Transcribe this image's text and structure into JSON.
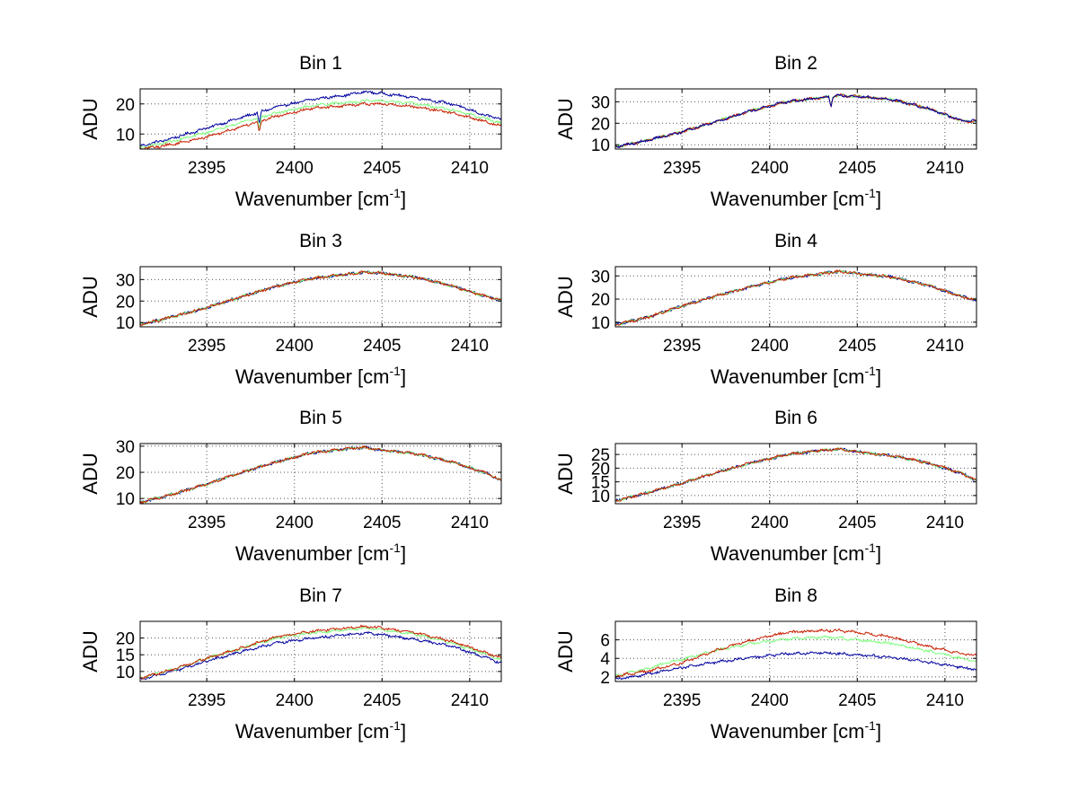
{
  "figure": {
    "x_label_prefix": "Wavenumber [cm",
    "x_label_sup": "-1",
    "x_label_suffix": "]",
    "y_label": "ADU",
    "x_ticks": [
      "2395",
      "2400",
      "2405",
      "2410"
    ],
    "colors": {
      "blue": "#0000a0",
      "green": "#7dff7d",
      "red": "#c81e00",
      "grid": "#555555",
      "axis": "#000000"
    }
  },
  "chart_data": [
    {
      "type": "line",
      "title": "Bin 1",
      "xlabel": "Wavenumber [cm-1]",
      "ylabel": "ADU",
      "xlim": [
        2391.2,
        2411.8
      ],
      "ylim": [
        5,
        25
      ],
      "yticks": [
        10,
        20
      ],
      "yticklabels": [
        "10",
        "20"
      ],
      "x": [
        2391.2,
        2393,
        2395,
        2397,
        2399,
        2401,
        2403,
        2404,
        2405,
        2407,
        2409,
        2411,
        2411.8
      ],
      "series": [
        {
          "name": "blue",
          "values": [
            6,
            8.5,
            12,
            15.5,
            19,
            21.5,
            23,
            24,
            23.5,
            22,
            20,
            16,
            15
          ]
        },
        {
          "name": "green",
          "values": [
            5.5,
            7.5,
            10.5,
            14,
            17,
            19.5,
            20.5,
            21,
            21,
            20,
            18,
            15,
            13.5
          ]
        },
        {
          "name": "red",
          "values": [
            5,
            6.5,
            9,
            12.5,
            16,
            18.5,
            19.5,
            20,
            20,
            19,
            17,
            14,
            12.5
          ]
        }
      ],
      "annotations": [
        {
          "x": 2398,
          "dip": 4
        }
      ]
    },
    {
      "type": "line",
      "title": "Bin 2",
      "xlabel": "Wavenumber [cm-1]",
      "ylabel": "ADU",
      "xlim": [
        2391.2,
        2411.8
      ],
      "ylim": [
        8,
        36
      ],
      "yticks": [
        10,
        20,
        30
      ],
      "yticklabels": [
        "10",
        "20",
        "30"
      ],
      "x": [
        2391.2,
        2393,
        2395,
        2397,
        2399,
        2401,
        2403,
        2404,
        2405,
        2407,
        2409,
        2411,
        2411.8
      ],
      "series": [
        {
          "name": "green",
          "values": [
            9,
            12,
            16,
            21,
            26,
            30,
            32,
            33,
            32.5,
            31,
            27,
            21,
            21
          ]
        },
        {
          "name": "red",
          "values": [
            9,
            12,
            16,
            21,
            26,
            30,
            32,
            33,
            32.5,
            31,
            27,
            21,
            21
          ]
        },
        {
          "name": "blue",
          "values": [
            9,
            12,
            16,
            21,
            26,
            30,
            32,
            33,
            32.5,
            31,
            27,
            21,
            21
          ]
        }
      ],
      "annotations": [
        {
          "x": 2403.5,
          "dip": 5
        }
      ]
    },
    {
      "type": "line",
      "title": "Bin 3",
      "xlabel": "Wavenumber [cm-1]",
      "ylabel": "ADU",
      "xlim": [
        2391.2,
        2411.8
      ],
      "ylim": [
        8,
        36
      ],
      "yticks": [
        10,
        20,
        30
      ],
      "yticklabels": [
        "10",
        "20",
        "30"
      ],
      "x": [
        2391.2,
        2393,
        2395,
        2397,
        2399,
        2401,
        2403,
        2404,
        2405,
        2407,
        2409,
        2411,
        2411.8
      ],
      "series": [
        {
          "name": "blue",
          "values": [
            9,
            12.5,
            17,
            22,
            27,
            30.5,
            32.5,
            33.5,
            33,
            31,
            27,
            22,
            20.5
          ]
        },
        {
          "name": "green",
          "values": [
            9,
            12.5,
            17,
            22,
            27,
            30.5,
            32.5,
            33.5,
            33,
            31,
            27,
            22,
            20.5
          ]
        },
        {
          "name": "red",
          "values": [
            9,
            12.5,
            17,
            22,
            27,
            30.5,
            32.5,
            33.5,
            33,
            31,
            27,
            22,
            20.5
          ]
        }
      ],
      "annotations": []
    },
    {
      "type": "line",
      "title": "Bin 4",
      "xlabel": "Wavenumber [cm-1]",
      "ylabel": "ADU",
      "xlim": [
        2391.2,
        2411.8
      ],
      "ylim": [
        8,
        34
      ],
      "yticks": [
        10,
        20,
        30
      ],
      "yticklabels": [
        "10",
        "20",
        "30"
      ],
      "x": [
        2391.2,
        2393,
        2395,
        2397,
        2399,
        2401,
        2403,
        2404,
        2405,
        2407,
        2409,
        2411,
        2411.8
      ],
      "series": [
        {
          "name": "blue",
          "values": [
            9,
            12,
            17,
            21.5,
            25.5,
            29,
            31,
            32,
            31,
            29.5,
            26,
            21,
            19.5
          ]
        },
        {
          "name": "green",
          "values": [
            9,
            12,
            17,
            21.5,
            25.5,
            29,
            31,
            32,
            31,
            29.5,
            26,
            21,
            19.5
          ]
        },
        {
          "name": "red",
          "values": [
            9,
            12,
            17,
            21.5,
            25.5,
            29,
            31,
            32,
            31,
            29.5,
            26,
            21,
            19.5
          ]
        }
      ],
      "annotations": []
    },
    {
      "type": "line",
      "title": "Bin 5",
      "xlabel": "Wavenumber [cm-1]",
      "ylabel": "ADU",
      "xlim": [
        2391.2,
        2411.8
      ],
      "ylim": [
        8,
        31
      ],
      "yticks": [
        10,
        20,
        30
      ],
      "yticklabels": [
        "10",
        "20",
        "30"
      ],
      "x": [
        2391.2,
        2393,
        2395,
        2397,
        2399,
        2401,
        2403,
        2404,
        2405,
        2407,
        2409,
        2411,
        2411.8
      ],
      "series": [
        {
          "name": "blue",
          "values": [
            8.5,
            11.5,
            15.5,
            20,
            24,
            27.5,
            29,
            29.5,
            28.5,
            27,
            24,
            19.5,
            17
          ]
        },
        {
          "name": "green",
          "values": [
            8.5,
            11.5,
            15.5,
            20,
            24,
            27.5,
            29,
            29.5,
            28.5,
            27,
            24,
            19.5,
            17
          ]
        },
        {
          "name": "red",
          "values": [
            8.5,
            11.5,
            15.5,
            20,
            24,
            27.5,
            29,
            29.5,
            28.5,
            27,
            24,
            19.5,
            17
          ]
        }
      ],
      "annotations": []
    },
    {
      "type": "line",
      "title": "Bin 6",
      "xlabel": "Wavenumber [cm-1]",
      "ylabel": "ADU",
      "xlim": [
        2391.2,
        2411.8
      ],
      "ylim": [
        7,
        29
      ],
      "yticks": [
        10,
        15,
        20,
        25
      ],
      "yticklabels": [
        "10",
        "15",
        "20",
        "25"
      ],
      "x": [
        2391.2,
        2393,
        2395,
        2397,
        2399,
        2401,
        2403,
        2404,
        2405,
        2407,
        2409,
        2411,
        2411.8
      ],
      "series": [
        {
          "name": "blue",
          "values": [
            8,
            11,
            14.5,
            18.5,
            22,
            25,
            26.5,
            27,
            26,
            24.5,
            22,
            18,
            15.5
          ]
        },
        {
          "name": "green",
          "values": [
            8,
            11,
            14.5,
            18.5,
            22,
            25,
            26.5,
            27,
            26,
            24.5,
            22,
            18,
            15.5
          ]
        },
        {
          "name": "red",
          "values": [
            8,
            11,
            14.5,
            18.5,
            22,
            25,
            26.5,
            27,
            26,
            24.5,
            22,
            18,
            15.5
          ]
        }
      ],
      "annotations": []
    },
    {
      "type": "line",
      "title": "Bin 7",
      "xlabel": "Wavenumber [cm-1]",
      "ylabel": "ADU",
      "xlim": [
        2391.2,
        2411.8
      ],
      "ylim": [
        7,
        25
      ],
      "yticks": [
        10,
        15,
        20
      ],
      "yticklabels": [
        "10",
        "15",
        "20"
      ],
      "x": [
        2391.2,
        2393,
        2395,
        2397,
        2399,
        2401,
        2403,
        2404,
        2405,
        2407,
        2409,
        2411,
        2411.8
      ],
      "series": [
        {
          "name": "blue",
          "values": [
            7.5,
            10,
            13,
            16,
            18.5,
            20,
            21,
            21.5,
            21,
            19.5,
            17.5,
            14,
            12.5
          ]
        },
        {
          "name": "green",
          "values": [
            8,
            10.5,
            14,
            17,
            20,
            21.5,
            22.5,
            23,
            22.5,
            21,
            18.5,
            15,
            13.5
          ]
        },
        {
          "name": "red",
          "values": [
            8,
            10.5,
            14,
            17,
            20.5,
            22,
            23,
            23.5,
            23,
            21.5,
            19,
            15.5,
            14
          ]
        }
      ],
      "annotations": []
    },
    {
      "type": "line",
      "title": "Bin 8",
      "xlabel": "Wavenumber [cm-1]",
      "ylabel": "ADU",
      "xlim": [
        2391.2,
        2411.8
      ],
      "ylim": [
        1.5,
        8
      ],
      "yticks": [
        2,
        4,
        6
      ],
      "yticklabels": [
        "2",
        "4",
        "6"
      ],
      "x": [
        2391.2,
        2393,
        2395,
        2397,
        2399,
        2401,
        2403,
        2404,
        2405,
        2407,
        2409,
        2411,
        2411.8
      ],
      "series": [
        {
          "name": "blue",
          "values": [
            1.7,
            2.3,
            3,
            3.6,
            4.1,
            4.5,
            4.6,
            4.5,
            4.4,
            4.1,
            3.6,
            3,
            2.8
          ]
        },
        {
          "name": "green",
          "values": [
            2.1,
            2.9,
            3.9,
            4.9,
            5.6,
            6.1,
            6.3,
            6.2,
            6,
            5.6,
            4.8,
            4,
            3.7
          ]
        },
        {
          "name": "red",
          "values": [
            2.1,
            2.6,
            3.5,
            4.9,
            6,
            6.8,
            7,
            7,
            6.8,
            6.3,
            5.3,
            4.5,
            4.3
          ]
        }
      ],
      "annotations": []
    }
  ]
}
